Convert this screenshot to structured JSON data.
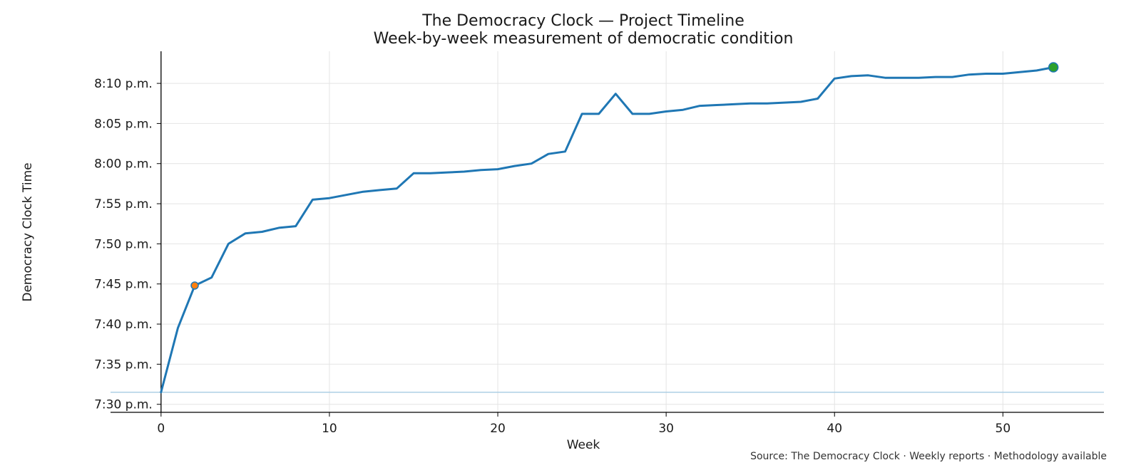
{
  "chart_data": {
    "type": "line",
    "title": "The Democracy Clock — Project Timeline",
    "subtitle": "Week-by-week measurement of democratic condition",
    "xlabel": "Week",
    "ylabel": "Democracy Clock Time",
    "source": "Source: The Democracy Clock · Weekly reports · Methodology available",
    "xlim": [
      -3,
      56
    ],
    "ylim": [
      "7:29 p.m.",
      "8:14 p.m."
    ],
    "x_ticks": [
      0,
      10,
      20,
      30,
      40,
      50
    ],
    "x_tick_labels": [
      "0",
      "10",
      "20",
      "30",
      "40",
      "50"
    ],
    "y_tick_labels": [
      "7:30 p.m.",
      "7:35 p.m.",
      "7:40 p.m.",
      "7:45 p.m.",
      "7:50 p.m.",
      "7:55 p.m.",
      "8:00 p.m.",
      "8:05 p.m.",
      "8:10 p.m."
    ],
    "grid": true,
    "reference_line": {
      "y": "7:31:30 p.m.",
      "color": "#a6cbe3"
    },
    "series": [
      {
        "color": "#1f77b4",
        "points": [
          [
            0,
            "7:31:30 p.m."
          ],
          [
            1,
            "7:39:30 p.m."
          ],
          [
            2,
            "7:44:48 p.m."
          ],
          [
            3,
            "7:45:48 p.m."
          ],
          [
            4,
            "7:50:00 p.m."
          ],
          [
            5,
            "7:51:18 p.m."
          ],
          [
            6,
            "7:51:30 p.m."
          ],
          [
            7,
            "7:52:00 p.m."
          ],
          [
            8,
            "7:52:12 p.m."
          ],
          [
            9,
            "7:55:30 p.m."
          ],
          [
            10,
            "7:55:42 p.m."
          ],
          [
            11,
            "7:56:06 p.m."
          ],
          [
            12,
            "7:56:30 p.m."
          ],
          [
            13,
            "7:56:42 p.m."
          ],
          [
            14,
            "7:56:54 p.m."
          ],
          [
            15,
            "7:58:48 p.m."
          ],
          [
            16,
            "7:58:48 p.m."
          ],
          [
            17,
            "7:58:54 p.m."
          ],
          [
            18,
            "7:59:00 p.m."
          ],
          [
            19,
            "7:59:12 p.m."
          ],
          [
            20,
            "7:59:18 p.m."
          ],
          [
            21,
            "7:59:42 p.m."
          ],
          [
            22,
            "8:00:00 p.m."
          ],
          [
            23,
            "8:01:12 p.m."
          ],
          [
            24,
            "8:01:30 p.m."
          ],
          [
            25,
            "8:06:12 p.m."
          ],
          [
            26,
            "8:06:12 p.m."
          ],
          [
            27,
            "8:08:42 p.m."
          ],
          [
            28,
            "8:06:12 p.m."
          ],
          [
            29,
            "8:06:12 p.m."
          ],
          [
            30,
            "8:06:30 p.m."
          ],
          [
            31,
            "8:06:42 p.m."
          ],
          [
            32,
            "8:07:12 p.m."
          ],
          [
            33,
            "8:07:18 p.m."
          ],
          [
            34,
            "8:07:24 p.m."
          ],
          [
            35,
            "8:07:30 p.m."
          ],
          [
            36,
            "8:07:30 p.m."
          ],
          [
            37,
            "8:07:36 p.m."
          ],
          [
            38,
            "8:07:42 p.m."
          ],
          [
            39,
            "8:08:06 p.m."
          ],
          [
            40,
            "8:10:36 p.m."
          ],
          [
            41,
            "8:10:54 p.m."
          ],
          [
            42,
            "8:11:00 p.m."
          ],
          [
            43,
            "8:10:42 p.m."
          ],
          [
            44,
            "8:10:42 p.m."
          ],
          [
            45,
            "8:10:42 p.m."
          ],
          [
            46,
            "8:10:48 p.m."
          ],
          [
            47,
            "8:10:48 p.m."
          ],
          [
            48,
            "8:11:06 p.m."
          ],
          [
            49,
            "8:11:12 p.m."
          ],
          [
            50,
            "8:11:12 p.m."
          ],
          [
            51,
            "8:11:24 p.m."
          ],
          [
            52,
            "8:11:36 p.m."
          ],
          [
            53,
            "8:12:00 p.m."
          ]
        ]
      }
    ],
    "highlight_points": [
      {
        "x": 2,
        "y": "7:44:48 p.m.",
        "color": "#ff7f0e"
      },
      {
        "x": 53,
        "y": "8:12:00 p.m.",
        "color": "#2ca02c"
      }
    ]
  }
}
